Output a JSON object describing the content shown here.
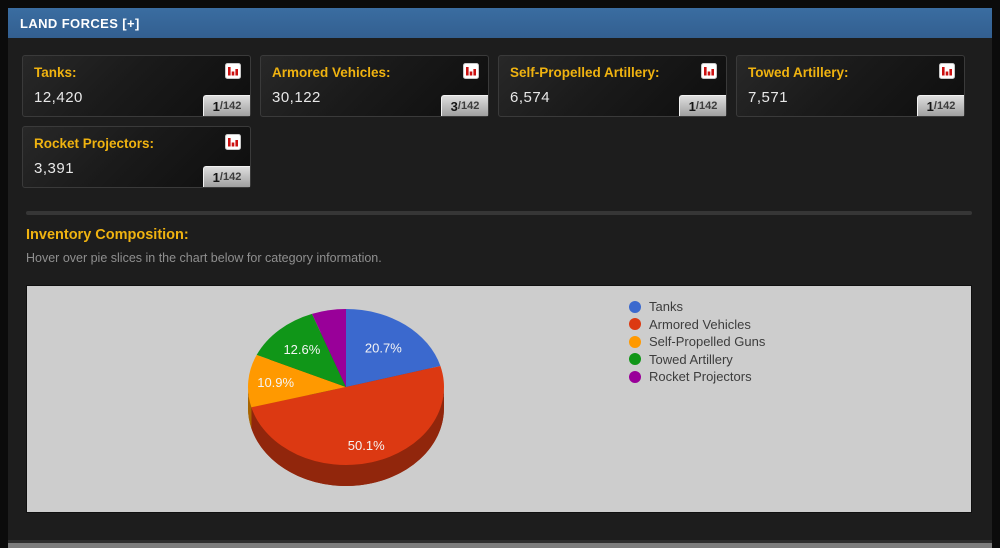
{
  "header": {
    "title": "LAND FORCES [+]"
  },
  "cards": [
    {
      "label": "Tanks:",
      "value": "12,420",
      "rank": "1",
      "rank_total": "/142",
      "icon": "bar-chart-icon"
    },
    {
      "label": "Armored Vehicles:",
      "value": "30,122",
      "rank": "3",
      "rank_total": "/142",
      "icon": "bar-chart-icon"
    },
    {
      "label": "Self-Propelled Artillery:",
      "value": "6,574",
      "rank": "1",
      "rank_total": "/142",
      "icon": "bar-chart-icon"
    },
    {
      "label": "Towed Artillery:",
      "value": "7,571",
      "rank": "1",
      "rank_total": "/142",
      "icon": "bar-chart-icon"
    },
    {
      "label": "Rocket Projectors:",
      "value": "3,391",
      "rank": "1",
      "rank_total": "/142",
      "icon": "bar-chart-icon"
    }
  ],
  "section": {
    "title": "Inventory Composition:",
    "subtitle": "Hover over pie slices in the chart below for category information."
  },
  "chart_data": {
    "type": "pie",
    "is3d": true,
    "legend_position": "right",
    "background_color": "#cdcdcd",
    "start_angle_deg": 0,
    "slices": [
      {
        "label": "Tanks",
        "value": 12420,
        "pct": 20.7,
        "pct_label": "20.7%",
        "color": "#3b69ce"
      },
      {
        "label": "Armored Vehicles",
        "value": 30122,
        "pct": 50.1,
        "pct_label": "50.1%",
        "color": "#dc3912"
      },
      {
        "label": "Self-Propelled Guns",
        "value": 6574,
        "pct": 10.9,
        "pct_label": "10.9%",
        "color": "#ff9900"
      },
      {
        "label": "Towed Artillery",
        "value": 7571,
        "pct": 12.6,
        "pct_label": "12.6%",
        "color": "#109618"
      },
      {
        "label": "Rocket Projectors",
        "value": 3391,
        "pct": 5.6,
        "pct_label": "",
        "color": "#990099"
      }
    ]
  },
  "colors": {
    "titlebar": "#335f90",
    "accent_gold": "#f0b310",
    "content_bg": "#1d1d1d",
    "chart_bg": "#cdcdcd"
  }
}
